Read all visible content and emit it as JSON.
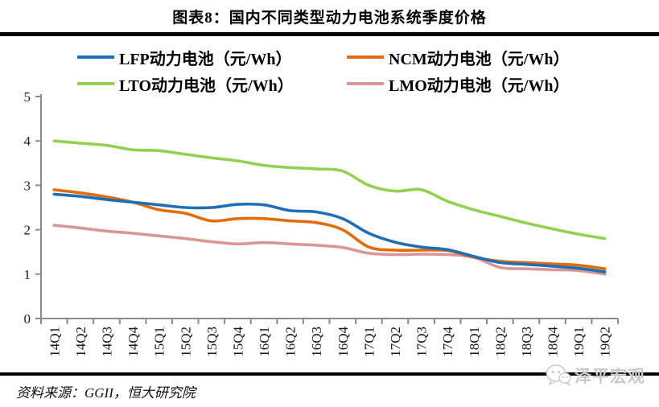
{
  "title": "图表8：国内不同类型动力电池系统季度价格",
  "source": "资料来源：GGII，恒大研究院",
  "watermark": {
    "icon": "wechat-icon",
    "text": "泽平宏观",
    "color": "#c9c9c9"
  },
  "colors": {
    "axis": "#8a8a8a",
    "tick_label": "#1a1a1a",
    "rule": "#000000"
  },
  "legend": [
    {
      "label": "LFP动力电池（元/Wh）",
      "color": "#1f6fb8"
    },
    {
      "label": "NCM动力电池（元/Wh）",
      "color": "#e36c09"
    },
    {
      "label": "LTO动力电池（元/Wh）",
      "color": "#92d050"
    },
    {
      "label": "LMO动力电池（元/Wh）",
      "color": "#d99694"
    }
  ],
  "chart_data": {
    "type": "line",
    "title": "图表8：国内不同类型动力电池系统季度价格",
    "xlabel": "",
    "ylabel": "",
    "ylim": [
      0,
      5
    ],
    "yticks": [
      0,
      1,
      2,
      3,
      4,
      5
    ],
    "grid": false,
    "legend_position": "top",
    "categories": [
      "14Q1",
      "14Q2",
      "14Q3",
      "14Q4",
      "15Q1",
      "15Q2",
      "15Q3",
      "15Q4",
      "16Q1",
      "16Q2",
      "16Q3",
      "16Q4",
      "17Q1",
      "17Q2",
      "17Q3",
      "17Q4",
      "18Q1",
      "18Q2",
      "18Q3",
      "18Q4",
      "19Q1",
      "19Q2"
    ],
    "series": [
      {
        "name": "LFP动力电池（元/Wh）",
        "color": "#1f6fb8",
        "values": [
          2.8,
          2.75,
          2.68,
          2.62,
          2.56,
          2.5,
          2.5,
          2.57,
          2.56,
          2.43,
          2.4,
          2.25,
          1.92,
          1.72,
          1.61,
          1.55,
          1.4,
          1.26,
          1.22,
          1.18,
          1.13,
          1.05
        ]
      },
      {
        "name": "NCM动力电池（元/Wh）",
        "color": "#e36c09",
        "values": [
          2.9,
          2.83,
          2.74,
          2.62,
          2.45,
          2.37,
          2.2,
          2.25,
          2.25,
          2.2,
          2.16,
          2.0,
          1.61,
          1.54,
          1.54,
          1.53,
          1.38,
          1.29,
          1.26,
          1.23,
          1.2,
          1.12
        ]
      },
      {
        "name": "LTO动力电池（元/Wh）",
        "color": "#92d050",
        "values": [
          4.0,
          3.95,
          3.9,
          3.8,
          3.78,
          3.7,
          3.62,
          3.55,
          3.45,
          3.4,
          3.37,
          3.32,
          3.0,
          2.87,
          2.9,
          2.64,
          2.45,
          2.3,
          2.15,
          2.02,
          1.9,
          1.8
        ]
      },
      {
        "name": "LMO动力电池（元/Wh）",
        "color": "#d99694",
        "values": [
          2.1,
          2.04,
          1.97,
          1.92,
          1.86,
          1.8,
          1.73,
          1.68,
          1.71,
          1.68,
          1.65,
          1.6,
          1.47,
          1.44,
          1.45,
          1.44,
          1.38,
          1.15,
          1.12,
          1.1,
          1.08,
          1.0
        ]
      }
    ]
  }
}
